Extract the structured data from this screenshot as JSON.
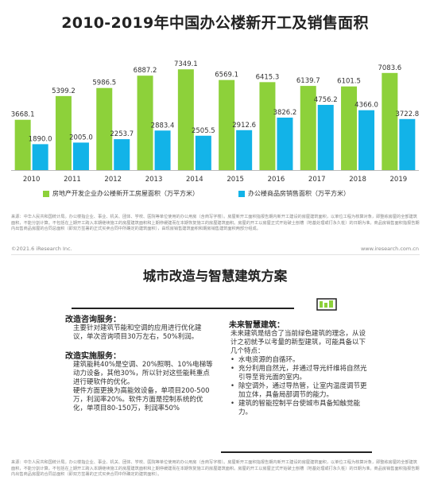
{
  "chart_title": "2010-2019年中国办公楼新开工及销售面积",
  "chart_data": {
    "type": "bar",
    "categories": [
      "2010",
      "2011",
      "2012",
      "2013",
      "2014",
      "2015",
      "2016",
      "2017",
      "2018",
      "2019"
    ],
    "series": [
      {
        "name": "房地产开发企业办公楼新开工房屋面积（万平方米）",
        "values": [
          3668.1,
          5399.2,
          5986.5,
          6887.2,
          7349.1,
          6569.1,
          6415.3,
          6139.7,
          6101.5,
          7083.6
        ]
      },
      {
        "name": "办公楼商品房销售面积（万平方米）",
        "values": [
          1890.0,
          2005.0,
          2253.7,
          2883.4,
          2505.5,
          2912.6,
          3826.2,
          4756.2,
          4366.0,
          3722.8
        ]
      }
    ],
    "value_labels": [
      [
        "3668.1",
        "5399.2",
        "5986.5",
        "6887.2",
        "7349.1",
        "6569.1",
        "6415.3",
        "6139.7",
        "6101.5",
        "7083.6"
      ],
      [
        "1890.0",
        "2005.0",
        "2253.7",
        "2883.4",
        "2505.5",
        "2912.6",
        "3826.2",
        "4756.2",
        "4366.0",
        "3722.8"
      ]
    ],
    "colors": [
      "#8dd13a",
      "#12b3e8"
    ],
    "ylim": [
      0,
      8000
    ],
    "legend_position": "bottom",
    "grid": false
  },
  "source_text": "来源：中华人民共和国统计局。办公楼指企业、事业、机关、团体、学校、医院等单位使用的办公用房（含商写字楼）。房屋新开工面积指报告期内新开工建设的房屋建筑面积，以单位工程为核算对象，即整栋房屋的全部建筑面积，不能分割计算。不包括在上期开工跨入本期继续施工的房屋建筑面积和上期停缓建而在本期恢复施工的房屋建筑面积。房屋的开工以房屋正式开始破土刨槽（地基处理或打永久桩）的日期为准。商品房销售面积指报告期内出售商品房屋的合同总面积（即双方签署的正式买卖合同中所确定的建筑面积），由现房销售建筑面积和期房销售建筑面积两部分组成。",
  "copyright": "©2021.6 iResearch Inc.",
  "website": "www.iresearch.com.cn",
  "section_title": "城市改造与智慧建筑方案",
  "left_panel": {
    "heading1": "改造咨询服务：",
    "text1": "主要针对建筑节能和空调的应用进行优化建议，单次咨询项目30万左右，50%利润。",
    "heading2": "改造实施服务：",
    "text2": "建筑能耗40%是空调、20%照明、10%电梯等动力设备，其他30%，所以针对这些能耗重点进行硬软件的优化。",
    "text3": "硬件方面更换为高能效设备，单项目200-500万，利润率20%。软件方面是控制系统的优化，单项目80-150万，利润率50%"
  },
  "right_panel": {
    "heading": "未来智慧建筑：",
    "intro": "未来建筑是结合了当前绿色建筑的理念，从设计之初就予以考量的新型建筑，可能具备以下几个特点：",
    "bullets": [
      "水电资源的自循环。",
      "充分利用自然光，并通过导光纤维将自然光引导至背光面的室内。",
      "除空调外，通过导热管，让室内温度调节更加立体，具备局部调节的能力。",
      "建筑的智能控制平台使城市具备知触觉能力。"
    ]
  },
  "icon_name": "building-icon",
  "source_text_2": "来源：中华人民共和国统计局。办公楼指企业、事业、机关、团体、学校、医院等单位使用的办公用房（含商写字楼）。房屋新开工面积指报告期内新开工建设的房屋建筑面积，以单位工程为核算对象，即整栋房屋的全部建筑面积，不能分割计算。不包括在上期开工跨入本期继续施工的房屋建筑面积和上期停缓建而在本期恢复施工的房屋建筑面积。房屋的开工以房屋正式开始破土刨槽（地基处理或打永久桩）的日期为准。商品房销售面积指报告期内出售商品房屋的合同总面积（即双方签署的正式买卖合同中所确定的建筑面积）。"
}
